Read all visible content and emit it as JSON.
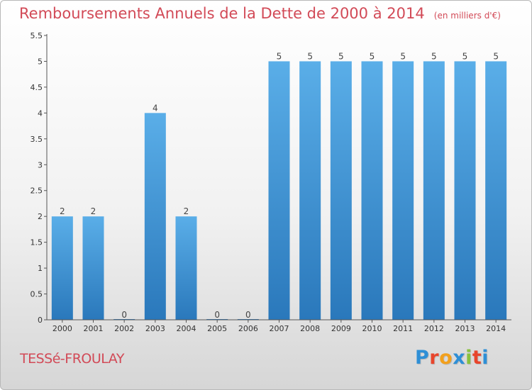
{
  "title": "Remboursements Annuels de la Dette de 2000 à 2014",
  "unit": "(en milliers d'€)",
  "commune": "TESSé-FROULAY",
  "logo": {
    "letters": [
      "P",
      "r",
      "o",
      "x",
      "i",
      "t",
      "i"
    ],
    "colors": [
      "#2e8fd6",
      "#e8452c",
      "#f2a01d",
      "#2e8fd6",
      "#89c13d",
      "#e8452c",
      "#2e8fd6"
    ]
  },
  "chart_data": {
    "type": "bar",
    "categories": [
      "2000",
      "2001",
      "2002",
      "2003",
      "2004",
      "2005",
      "2006",
      "2007",
      "2008",
      "2009",
      "2010",
      "2011",
      "2012",
      "2013",
      "2014"
    ],
    "values": [
      2,
      2,
      0,
      4,
      2,
      0,
      0,
      5,
      5,
      5,
      5,
      5,
      5,
      5,
      5
    ],
    "value_labels": [
      "2",
      "2",
      "0",
      "4",
      "2",
      "0",
      "0",
      "5",
      "5",
      "5",
      "5",
      "5",
      "5",
      "5",
      "5"
    ],
    "ylim": [
      0,
      5.5
    ],
    "yticks": [
      "0",
      "0.5",
      "1",
      "1.5",
      "2",
      "2.5",
      "3",
      "3.5",
      "4",
      "4.5",
      "5",
      "5.5"
    ],
    "ytick_values": [
      0,
      0.5,
      1,
      1.5,
      2,
      2.5,
      3,
      3.5,
      4,
      4.5,
      5,
      5.5
    ],
    "grid": false,
    "colors": {
      "bar_top": "#5aaee8",
      "bar_bottom": "#2a78bb",
      "text": "#d24a57"
    }
  }
}
